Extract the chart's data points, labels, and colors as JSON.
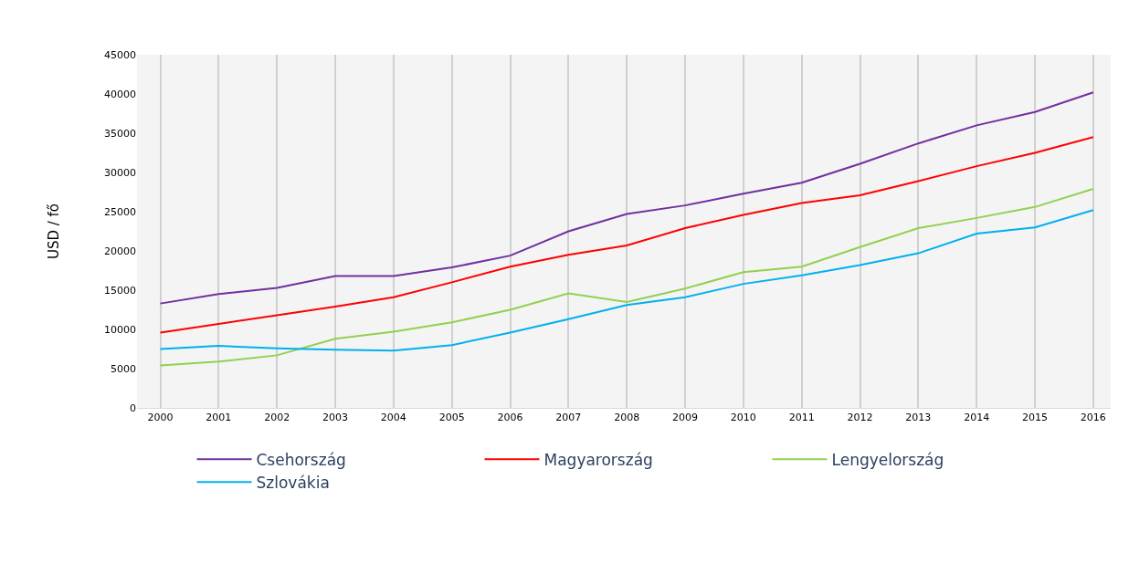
{
  "chart_data": {
    "type": "line",
    "ylabel": "USD / fő",
    "categories": [
      "2000",
      "2001",
      "2002",
      "2003",
      "2004",
      "2005",
      "2006",
      "2007",
      "2008",
      "2009",
      "2010",
      "2011",
      "2012",
      "2013",
      "2014",
      "2015",
      "2016"
    ],
    "series": [
      {
        "name": "Csehország",
        "color": "#7030a0",
        "values": [
          13300,
          14500,
          15300,
          16800,
          16800,
          17900,
          19400,
          22500,
          24700,
          25800,
          27300,
          28700,
          31100,
          33700,
          36000,
          37700,
          40200
        ]
      },
      {
        "name": "Magyarország",
        "color": "#ff0000",
        "values": [
          9600,
          10700,
          11800,
          12900,
          14100,
          16000,
          18000,
          19500,
          20700,
          22900,
          24600,
          26100,
          27100,
          28900,
          30800,
          32500,
          34500
        ]
      },
      {
        "name": "Lengyelország",
        "color": "#92d050",
        "values": [
          5400,
          5900,
          6700,
          8800,
          9700,
          10900,
          12500,
          14600,
          13500,
          15200,
          17300,
          18000,
          20500,
          22900,
          24200,
          25600,
          27900
        ]
      },
      {
        "name": "Szlovákia",
        "color": "#00b0f0",
        "values": [
          7500,
          7900,
          7600,
          7400,
          7300,
          8000,
          9600,
          11300,
          13100,
          14100,
          15800,
          16900,
          18200,
          19700,
          22200,
          23000,
          25200
        ]
      }
    ],
    "ylim": [
      0,
      45000
    ],
    "yticks": [
      0,
      5000,
      10000,
      15000,
      20000,
      25000,
      30000,
      35000,
      40000,
      45000
    ],
    "grid": "x",
    "legend": "bottom",
    "marker": "none",
    "line_style": "solid"
  }
}
